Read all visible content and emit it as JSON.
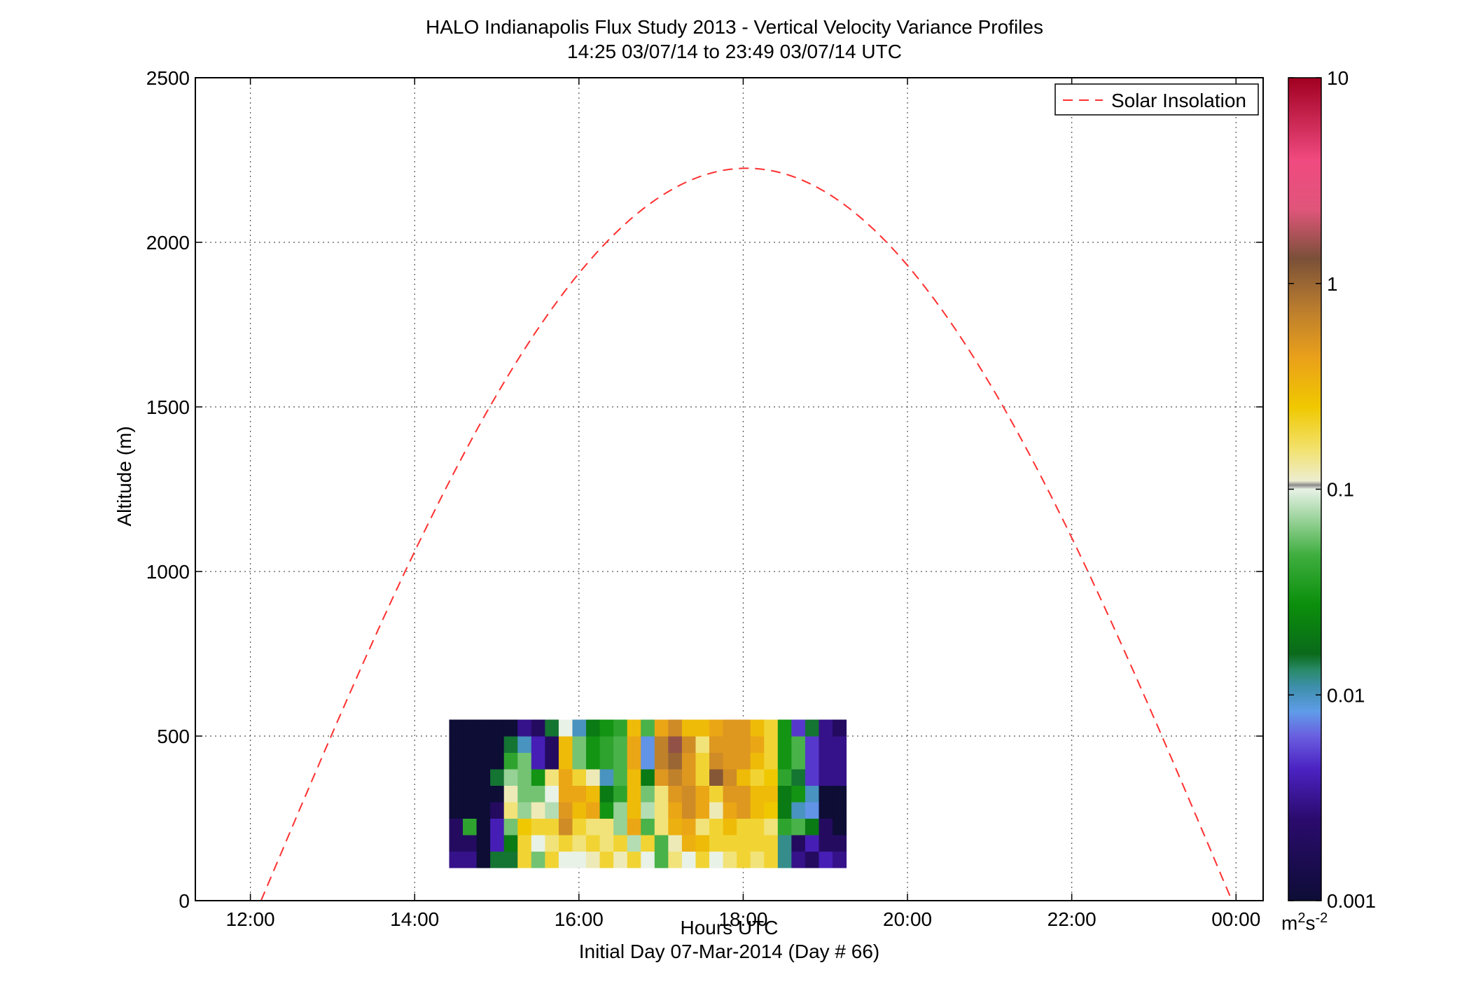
{
  "header": {
    "title_line1": "HALO Indianapolis Flux Study 2013 - Vertical Velocity Variance Profiles",
    "title_line2": "14:25 03/07/14 to 23:49 03/07/14  UTC"
  },
  "footer": {
    "initial_day": "Initial Day 07-Mar-2014 (Day # 66)"
  },
  "chart_data": {
    "type": "heatmap",
    "title": "HALO Indianapolis Flux Study 2013 - Vertical Velocity Variance Profiles",
    "subtitle": "14:25 03/07/14 to 23:49 03/07/14  UTC",
    "xlabel": "Hours UTC",
    "ylabel": "Altitude (m)",
    "xlim": [
      11.33,
      24.33
    ],
    "ylim": [
      0,
      2500
    ],
    "x_ticks": [
      12,
      14,
      16,
      18,
      20,
      22,
      24
    ],
    "x_tick_labels": [
      "12:00",
      "14:00",
      "16:00",
      "18:00",
      "20:00",
      "22:00",
      "00:00"
    ],
    "y_ticks": [
      0,
      500,
      1000,
      1500,
      2000,
      2500
    ],
    "y_tick_labels": [
      "0",
      "500",
      "1000",
      "1500",
      "2000",
      "2500"
    ],
    "grid": true,
    "legend": {
      "label": "Solar Insolation",
      "position": "top-right",
      "style": "red dashed"
    },
    "colorbar": {
      "label_base": "m",
      "label_sup1": "2",
      "label_mid": "s",
      "label_sup2": "-2",
      "scale": "log",
      "range": [
        0.001,
        10
      ],
      "tick_labels": [
        "10",
        "1",
        "0.1",
        "0.01",
        "0.001"
      ],
      "tick_values": [
        10,
        1,
        0.1,
        0.01,
        0.001
      ]
    },
    "cell_time_start": 14.42,
    "cell_time_step": 0.1667,
    "cell_alt_step": 50,
    "rows": [
      {
        "alt": 100,
        "start": 14.42,
        "values": [
          0.003,
          0.003,
          0.001,
          0.015,
          0.015,
          0.2,
          0.06,
          0.2,
          0.1,
          0.1,
          0.12,
          0.2,
          0.12,
          0.2,
          0.1,
          0.05,
          0.15,
          0.1,
          0.2,
          0.1,
          0.15,
          0.2,
          0.15,
          0.2,
          0.012,
          0.003,
          0.002,
          0.004,
          0.003
        ]
      },
      {
        "alt": 150,
        "start": 14.42,
        "values": [
          0.002,
          0.002,
          0.001,
          0.004,
          0.02,
          0.2,
          0.1,
          0.15,
          0.2,
          0.15,
          0.2,
          0.15,
          0.2,
          0.08,
          0.2,
          0.05,
          0.12,
          0.35,
          0.3,
          0.2,
          0.2,
          0.2,
          0.2,
          0.2,
          0.012,
          0.002,
          0.004,
          0.002,
          0.002
        ]
      },
      {
        "alt": 200,
        "start": 14.42,
        "values": [
          0.002,
          0.04,
          0.001,
          0.004,
          0.06,
          0.25,
          0.2,
          0.2,
          0.6,
          0.2,
          0.15,
          0.15,
          0.07,
          0.4,
          0.05,
          0.15,
          0.35,
          0.4,
          0.15,
          0.2,
          0.3,
          0.2,
          0.2,
          0.15,
          0.04,
          0.05,
          0.02,
          0.002,
          0.001
        ]
      },
      {
        "alt": 250,
        "start": 14.42,
        "values": [
          0.001,
          0.001,
          0.001,
          0.002,
          0.15,
          0.07,
          0.12,
          0.08,
          0.5,
          0.3,
          0.4,
          0.03,
          0.07,
          0.3,
          0.08,
          0.15,
          0.4,
          0.6,
          0.4,
          0.12,
          0.4,
          0.5,
          0.3,
          0.25,
          0.02,
          0.01,
          0.008,
          0.001,
          0.001
        ]
      },
      {
        "alt": 300,
        "start": 14.42,
        "values": [
          0.001,
          0.001,
          0.001,
          0.001,
          0.12,
          0.06,
          0.06,
          0.1,
          0.4,
          0.4,
          0.3,
          0.02,
          0.04,
          0.3,
          0.06,
          0.15,
          0.5,
          0.6,
          0.4,
          0.2,
          0.5,
          0.5,
          0.3,
          0.3,
          0.02,
          0.03,
          0.01,
          0.001,
          0.001
        ]
      },
      {
        "alt": 350,
        "start": 14.42,
        "values": [
          0.001,
          0.001,
          0.001,
          0.015,
          0.07,
          0.06,
          0.03,
          0.15,
          0.4,
          0.2,
          0.12,
          0.01,
          0.05,
          0.3,
          0.02,
          0.5,
          0.7,
          0.5,
          0.2,
          1.2,
          0.6,
          0.3,
          0.2,
          0.25,
          0.04,
          0.015,
          0.005,
          0.003,
          0.003
        ]
      },
      {
        "alt": 400,
        "start": 14.42,
        "values": [
          0.001,
          0.001,
          0.001,
          0.001,
          0.04,
          0.06,
          0.004,
          0.002,
          0.3,
          0.06,
          0.03,
          0.04,
          0.05,
          0.4,
          0.008,
          0.7,
          1.0,
          0.5,
          0.2,
          0.6,
          0.5,
          0.5,
          0.3,
          0.2,
          0.03,
          0.05,
          0.005,
          0.003,
          0.003
        ]
      },
      {
        "alt": 450,
        "start": 14.42,
        "values": [
          0.001,
          0.001,
          0.001,
          0.001,
          0.015,
          0.01,
          0.004,
          0.002,
          0.3,
          0.06,
          0.03,
          0.04,
          0.05,
          0.4,
          0.008,
          0.7,
          1.5,
          0.6,
          0.15,
          0.5,
          0.5,
          0.5,
          0.4,
          0.2,
          0.03,
          0.05,
          0.005,
          0.003,
          0.003
        ]
      },
      {
        "alt": 500,
        "start": 14.42,
        "values": [
          0.001,
          0.001,
          0.001,
          0.001,
          0.001,
          0.003,
          0.002,
          0.015,
          0.1,
          0.01,
          0.02,
          0.03,
          0.04,
          0.3,
          0.05,
          0.4,
          0.6,
          0.3,
          0.3,
          0.4,
          0.5,
          0.5,
          0.3,
          0.2,
          0.03,
          0.005,
          0.015,
          0.003,
          0.002
        ]
      }
    ]
  }
}
